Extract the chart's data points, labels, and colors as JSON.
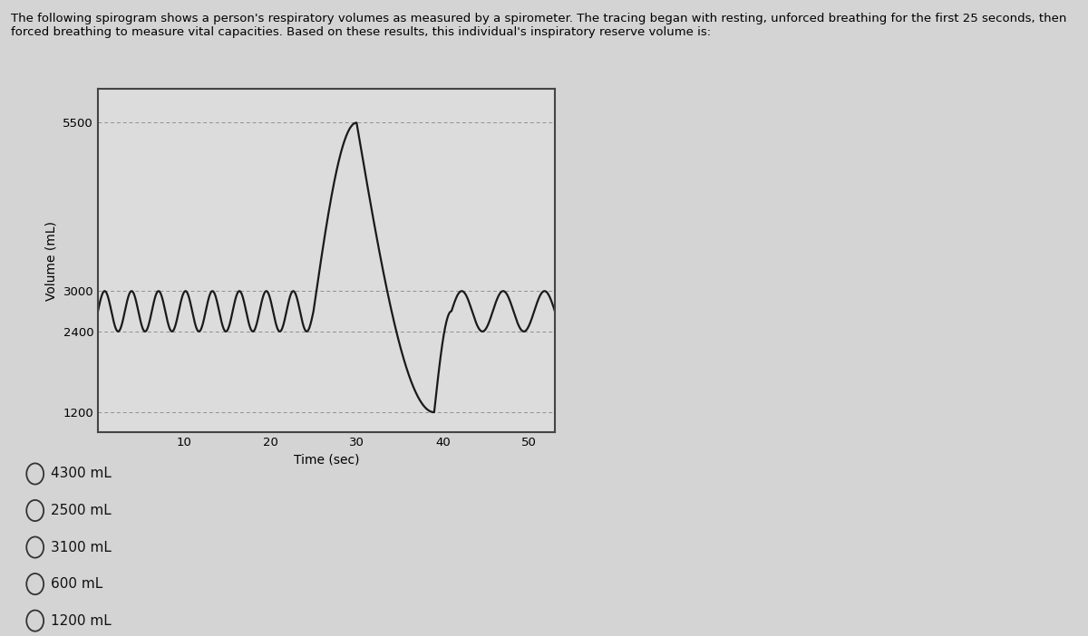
{
  "title_text": "The following spirogram shows a person's respiratory volumes as measured by a spirometer. The tracing began with resting, unforced breathing for the first 25 seconds, then\nforced breathing to measure vital capacities. Based on these results, this individual's inspiratory reserve volume is:",
  "ylabel": "Volume (mL)",
  "xlabel": "Time (sec)",
  "yticks": [
    1200,
    2400,
    3000,
    5500
  ],
  "xticks": [
    10,
    20,
    30,
    40,
    50
  ],
  "xlim": [
    0,
    53
  ],
  "ylim": [
    900,
    6000
  ],
  "bg_color": "#d4d4d4",
  "plot_bg_color": "#dcdcdc",
  "line_color": "#1a1a1a",
  "hline_color": "#888888",
  "choices": [
    "4300 mL",
    "2500 mL",
    "3100 mL",
    "600 mL",
    "1200 mL"
  ],
  "resting_min": 2400,
  "resting_max": 3000,
  "forced_peak": 5500,
  "forced_trough": 1200,
  "post_min": 2400,
  "post_max": 3000,
  "resting_cycles": 8,
  "resting_duration": 25,
  "forced_peak_time": 30,
  "forced_trough_time": 39,
  "post_start": 41,
  "post_cycles": 2.5,
  "total_time": 53
}
